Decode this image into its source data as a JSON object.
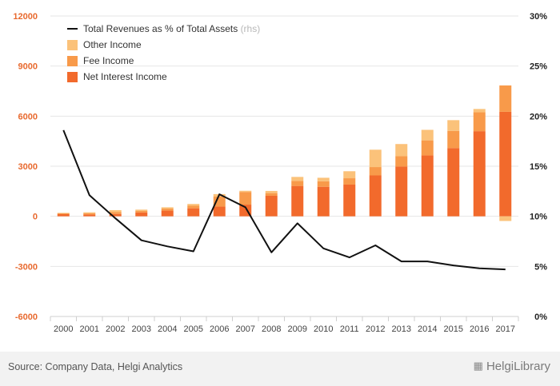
{
  "chart_data": {
    "type": "bar",
    "stacked": true,
    "categories": [
      "2000",
      "2001",
      "2002",
      "2003",
      "2004",
      "2005",
      "2006",
      "2007",
      "2008",
      "2009",
      "2010",
      "2011",
      "2012",
      "2013",
      "2014",
      "2015",
      "2016",
      "2017"
    ],
    "y_left": {
      "ticks": [
        "12000",
        "9000",
        "6000",
        "3000",
        "0",
        "-3000",
        "-6000"
      ],
      "ylim": [
        -6000,
        12000
      ]
    },
    "y_right": {
      "ticks": [
        "30%",
        "25%",
        "20%",
        "15%",
        "10%",
        "5%",
        "0%"
      ],
      "ylim": [
        0,
        30
      ]
    },
    "series": [
      {
        "name": "Net Interest Income",
        "color": "#f26a2c",
        "values": [
          130,
          110,
          140,
          230,
          340,
          480,
          580,
          700,
          1230,
          1820,
          1770,
          1900,
          2450,
          2980,
          3650,
          4090,
          5100,
          6260
        ]
      },
      {
        "name": "Fee Income",
        "color": "#f89a4a",
        "values": [
          50,
          70,
          110,
          90,
          120,
          150,
          600,
          760,
          160,
          300,
          330,
          380,
          500,
          620,
          900,
          1030,
          1130,
          1580
        ]
      },
      {
        "name": "Other Income",
        "color": "#fbc27a",
        "values": [
          30,
          60,
          120,
          80,
          80,
          110,
          150,
          70,
          130,
          240,
          210,
          420,
          1040,
          730,
          630,
          640,
          200,
          -280
        ]
      }
    ],
    "line": {
      "name": "Total Revenues as % of Total Assets",
      "suffix": "(rhs)",
      "color": "#111111",
      "values": [
        18.6,
        12.1,
        9.8,
        7.6,
        7.0,
        6.5,
        12.2,
        10.9,
        6.4,
        9.3,
        6.8,
        5.9,
        7.1,
        5.5,
        5.5,
        5.1,
        4.8,
        4.7
      ]
    },
    "grid": true,
    "legend_position": "top-left"
  },
  "footer": {
    "source": "Source: Company Data, Helgi Analytics",
    "brand": "HelgiLibrary"
  }
}
